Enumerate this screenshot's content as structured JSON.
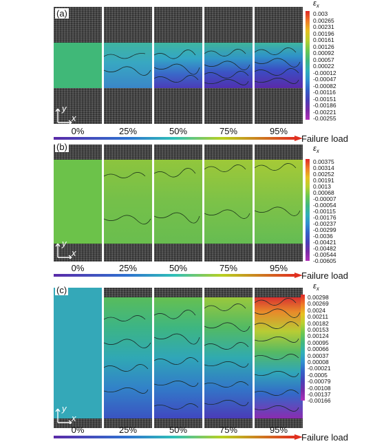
{
  "panels": [
    {
      "label": "(a)",
      "axis_y": "y",
      "axis_x": "x",
      "symbol": "ε",
      "symbol_sub": "x",
      "colorbar_ticks": [
        "0.003",
        "0.00265",
        "0.00231",
        "0.00196",
        "0.00161",
        "0.00126",
        "0.00092",
        "0.00057",
        "0.00022",
        "-0.00012",
        "-0.00047",
        "-0.00082",
        "-0.00116",
        "-0.00151",
        "-0.00186",
        "-0.00221",
        "-0.00255"
      ],
      "loads": [
        "0%",
        "25%",
        "50%",
        "75%",
        "95%"
      ],
      "arrow_label": "Failure load"
    },
    {
      "label": "(b)",
      "axis_y": "y",
      "axis_x": "x",
      "symbol": "ε",
      "symbol_sub": "x",
      "colorbar_ticks": [
        "0.00375",
        "0.00314",
        "0.00252",
        "0.00191",
        "0.0013",
        "0.00068",
        "-0.00007",
        "-0.00054",
        "-0.00115",
        "-0.00176",
        "-0.00237",
        "-0.00299",
        "-0.0036",
        "-0.00421",
        "-0.00482",
        "-0.00544",
        "-0.00605"
      ],
      "loads": [
        "0%",
        "25%",
        "50%",
        "75%",
        "95%"
      ],
      "arrow_label": "Failure load"
    },
    {
      "label": "(c)",
      "axis_y": "y",
      "axis_x": "x",
      "symbol": "ε",
      "symbol_sub": "x",
      "colorbar_ticks": [
        "0.00298",
        "0.00269",
        "0.0024",
        "0.00211",
        "0.00182",
        "0.00153",
        "0.00124",
        "0.00095",
        "0.00066",
        "0.00037",
        "0.00008",
        "-0.00021",
        "-0.0005",
        "-0.00079",
        "-0.00108",
        "-0.00137",
        "-0.00166"
      ],
      "loads": [
        "0%",
        "25%",
        "50%",
        "75%",
        "95%"
      ],
      "arrow_label": "Failure load"
    }
  ]
}
